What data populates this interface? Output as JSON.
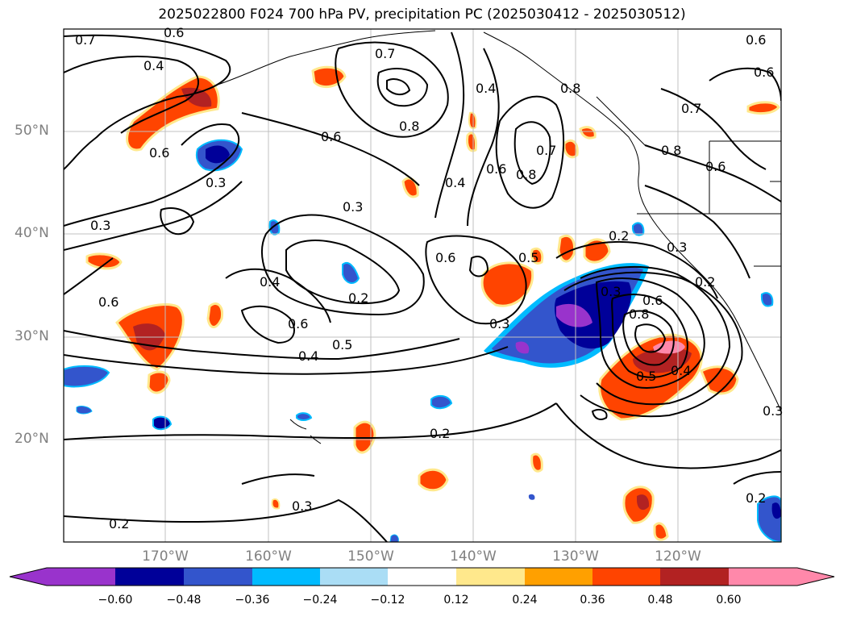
{
  "title": "2025022800 F024 700 hPa PV, precipitation PC (2025030412 - 2025030512)",
  "map": {
    "lat_labels": [
      "50°N",
      "40°N",
      "30°N",
      "20°N"
    ],
    "lon_labels": [
      "170°W",
      "160°W",
      "150°W",
      "140°W",
      "130°W",
      "120°W"
    ],
    "contour_labels": [
      "0.7",
      "0.6",
      "0.4",
      "0.7",
      "0.8",
      "0.4",
      "0.6",
      "0.6",
      "0.3",
      "0.6",
      "0.7",
      "0.8",
      "0.4",
      "0.6",
      "0.8",
      "0.3",
      "0.3",
      "0.2",
      "0.6",
      "0.4",
      "0.5",
      "0.2",
      "0.2",
      "0.3",
      "0.4",
      "0.6",
      "0.5",
      "0.2",
      "0.3",
      "0.8",
      "0.6",
      "0.5",
      "0.4",
      "0.3",
      "0.2",
      "0.3",
      "0.2",
      "0.8",
      "0.6",
      "0.6",
      "0.7",
      "0.6",
      "0.3"
    ],
    "field": "700 hPa PV",
    "shading": "precipitation PC"
  },
  "colorbar": {
    "ticks": [
      "−0.60",
      "−0.48",
      "−0.36",
      "−0.24",
      "−0.12",
      "0.12",
      "0.24",
      "0.36",
      "0.48",
      "0.60"
    ],
    "colors": [
      "#9933cc",
      "#000099",
      "#3355cc",
      "#00bbff",
      "#aaddf5",
      "#ffffff",
      "#ffe88c",
      "#ffa000",
      "#ff4400",
      "#b22222",
      "#ff88aa"
    ]
  }
}
